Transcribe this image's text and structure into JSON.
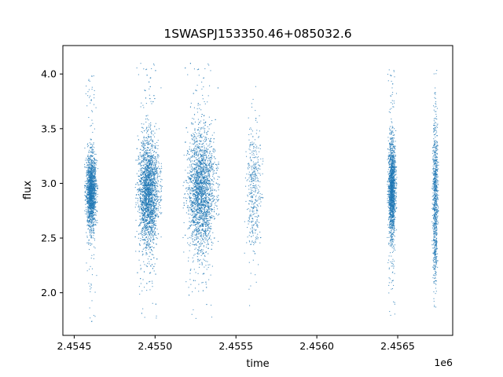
{
  "chart_data": {
    "type": "scatter",
    "title": "1SWASPJ153350.46+085032.6",
    "xlabel": "time",
    "ylabel": "flux",
    "x_offset_label": "1e6",
    "xlim": [
      2454430,
      2456840
    ],
    "ylim": [
      1.61,
      4.26
    ],
    "grid": false,
    "legend": "none",
    "marker_color": "#1f77b4",
    "x_ticks": [
      {
        "value": 2454500,
        "label": "2.4545"
      },
      {
        "value": 2455000,
        "label": "2.4550"
      },
      {
        "value": 2455500,
        "label": "2.4555"
      },
      {
        "value": 2456000,
        "label": "2.4560"
      },
      {
        "value": 2456500,
        "label": "2.4565"
      }
    ],
    "y_ticks": [
      {
        "value": 2.0,
        "label": "2.0"
      },
      {
        "value": 2.5,
        "label": "2.5"
      },
      {
        "value": 3.0,
        "label": "3.0"
      },
      {
        "value": 3.5,
        "label": "3.5"
      },
      {
        "value": 4.0,
        "label": "4.0"
      }
    ],
    "observing_seasons": [
      {
        "time_start": 2454570,
        "time_end": 2454640,
        "flux_center": 2.93,
        "flux_spread": 0.17,
        "flux_min": 1.73,
        "flux_max": 4.01,
        "density": "high"
      },
      {
        "time_start": 2454890,
        "time_end": 2455030,
        "flux_center": 2.92,
        "flux_spread": 0.24,
        "flux_min": 1.73,
        "flux_max": 4.12,
        "density": "very high"
      },
      {
        "time_start": 2455190,
        "time_end": 2455380,
        "flux_center": 2.93,
        "flux_spread": 0.27,
        "flux_min": 1.72,
        "flux_max": 4.12,
        "density": "very high"
      },
      {
        "time_start": 2455560,
        "time_end": 2455660,
        "flux_center": 2.95,
        "flux_spread": 0.28,
        "flux_min": 1.77,
        "flux_max": 3.95,
        "density": "low"
      },
      {
        "time_start": 2456440,
        "time_end": 2456490,
        "flux_center": 2.95,
        "flux_spread": 0.22,
        "flux_min": 1.75,
        "flux_max": 4.06,
        "density": "high"
      },
      {
        "time_start": 2456715,
        "time_end": 2456750,
        "flux_center": 2.85,
        "flux_spread": 0.35,
        "flux_min": 1.83,
        "flux_max": 4.07,
        "density": "medium"
      }
    ]
  }
}
